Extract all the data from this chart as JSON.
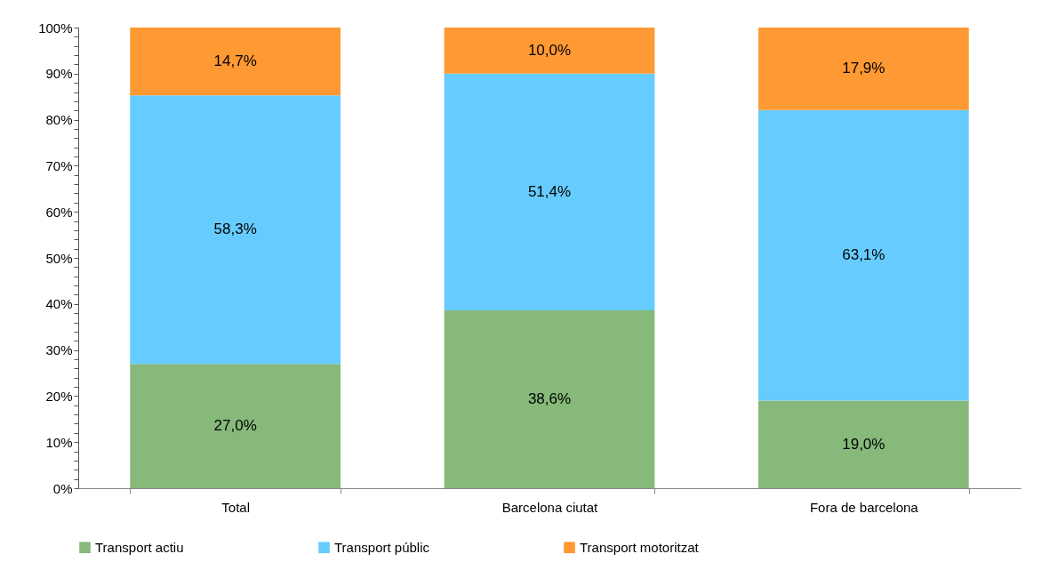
{
  "chart_data": {
    "type": "bar",
    "stacked": true,
    "categories": [
      "Total",
      "Barcelona ciutat",
      "Fora de barcelona"
    ],
    "series": [
      {
        "name": "Transport actiu",
        "color": "#86b97a",
        "values": [
          27.0,
          38.6,
          19.0
        ],
        "value_labels": [
          "27,0%",
          "38,6%",
          "19,0%"
        ]
      },
      {
        "name": "Transport públic",
        "color": "#66ccff",
        "values": [
          58.3,
          51.4,
          63.1
        ],
        "value_labels": [
          "58,3%",
          "51,4%",
          "63,1%"
        ]
      },
      {
        "name": "Transport motoritzat",
        "color": "#ff9933",
        "values": [
          14.7,
          10.0,
          17.9
        ],
        "value_labels": [
          "14,7%",
          "10,0%",
          "17,9%"
        ]
      }
    ],
    "ylim": [
      0,
      100
    ],
    "yticks": [
      {
        "value": 0,
        "label": "0%"
      },
      {
        "value": 2,
        "label": null
      },
      {
        "value": 4,
        "label": null
      },
      {
        "value": 6,
        "label": null
      },
      {
        "value": 8,
        "label": null
      },
      {
        "value": 10,
        "label": "10%"
      },
      {
        "value": 12,
        "label": null
      },
      {
        "value": 14,
        "label": null
      },
      {
        "value": 16,
        "label": null
      },
      {
        "value": 18,
        "label": null
      },
      {
        "value": 20,
        "label": "20%"
      },
      {
        "value": 22,
        "label": null
      },
      {
        "value": 24,
        "label": null
      },
      {
        "value": 26,
        "label": null
      },
      {
        "value": 28,
        "label": null
      },
      {
        "value": 30,
        "label": "30%"
      },
      {
        "value": 32,
        "label": null
      },
      {
        "value": 34,
        "label": null
      },
      {
        "value": 36,
        "label": null
      },
      {
        "value": 38,
        "label": null
      },
      {
        "value": 40,
        "label": "40%"
      },
      {
        "value": 42,
        "label": null
      },
      {
        "value": 44,
        "label": null
      },
      {
        "value": 46,
        "label": null
      },
      {
        "value": 48,
        "label": null
      },
      {
        "value": 50,
        "label": "50%"
      },
      {
        "value": 52,
        "label": null
      },
      {
        "value": 54,
        "label": null
      },
      {
        "value": 56,
        "label": null
      },
      {
        "value": 58,
        "label": null
      },
      {
        "value": 60,
        "label": "60%"
      },
      {
        "value": 62,
        "label": null
      },
      {
        "value": 64,
        "label": null
      },
      {
        "value": 66,
        "label": null
      },
      {
        "value": 68,
        "label": null
      },
      {
        "value": 70,
        "label": "70%"
      },
      {
        "value": 72,
        "label": null
      },
      {
        "value": 74,
        "label": null
      },
      {
        "value": 76,
        "label": null
      },
      {
        "value": 78,
        "label": null
      },
      {
        "value": 80,
        "label": "80%"
      },
      {
        "value": 82,
        "label": null
      },
      {
        "value": 84,
        "label": null
      },
      {
        "value": 86,
        "label": null
      },
      {
        "value": 88,
        "label": null
      },
      {
        "value": 90,
        "label": "90%"
      },
      {
        "value": 92,
        "label": null
      },
      {
        "value": 94,
        "label": null
      },
      {
        "value": 96,
        "label": null
      },
      {
        "value": 98,
        "label": null
      },
      {
        "value": 100,
        "label": "100%"
      }
    ],
    "grid": false,
    "legend": "bottom"
  }
}
